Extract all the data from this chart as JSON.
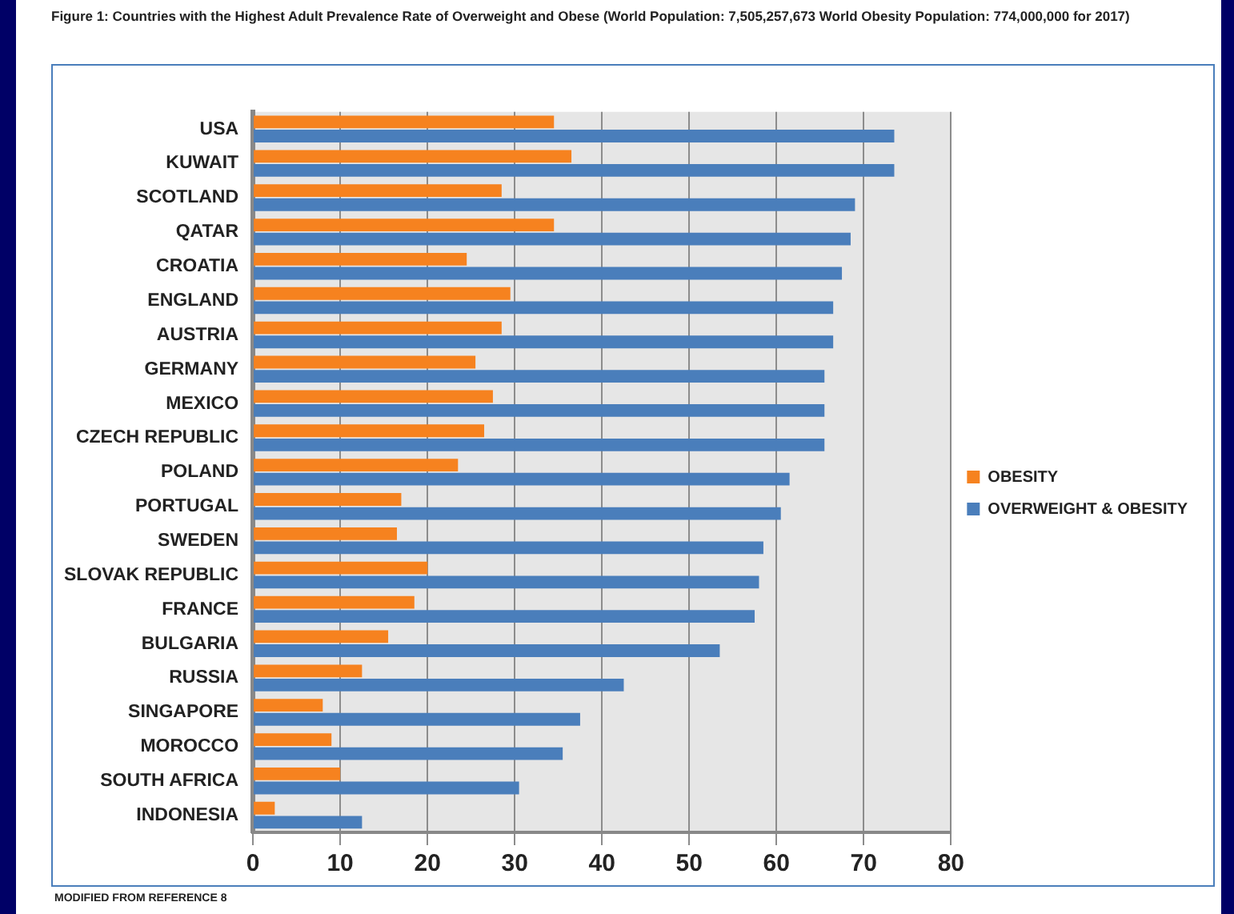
{
  "chart_data": {
    "type": "bar",
    "orientation": "horizontal",
    "title": "Figure 1:  Countries with the Highest Adult Prevalence Rate of Overweight and Obese (World Population: 7,505,257,673  World Obesity Population: 774,000,000  for 2017)",
    "categories": [
      "USA",
      "KUWAIT",
      "SCOTLAND",
      "QATAR",
      "CROATIA",
      "ENGLAND",
      "AUSTRIA",
      "GERMANY",
      "MEXICO",
      "CZECH REPUBLIC",
      "POLAND",
      "PORTUGAL",
      "SWEDEN",
      "SLOVAK REPUBLIC",
      "FRANCE",
      "BULGARIA",
      "RUSSIA",
      "SINGAPORE",
      "MOROCCO",
      "SOUTH AFRICA",
      "INDONESIA"
    ],
    "series": [
      {
        "name": "OBESITY",
        "color": "#f6821f",
        "values": [
          34.5,
          36.5,
          28.5,
          34.5,
          24.5,
          29.5,
          28.5,
          25.5,
          27.5,
          26.5,
          23.5,
          17,
          16.5,
          20,
          18.5,
          15.5,
          12.5,
          8,
          9,
          10,
          2.5
        ]
      },
      {
        "name": "OVERWEIGHT & OBESITY",
        "color": "#4a7ebb",
        "values": [
          73.5,
          73.5,
          69,
          68.5,
          67.5,
          66.5,
          66.5,
          65.5,
          65.5,
          65.5,
          61.5,
          60.5,
          58.5,
          58,
          57.5,
          53.5,
          42.5,
          37.5,
          35.5,
          30.5,
          12.5
        ]
      }
    ],
    "xlim": [
      0,
      80
    ],
    "xticks": [
      0,
      10,
      20,
      30,
      40,
      50,
      60,
      70,
      80
    ],
    "grid": "x",
    "legend": "right",
    "annotations": [
      "MODIFIED FROM REFERENCE 8"
    ]
  }
}
